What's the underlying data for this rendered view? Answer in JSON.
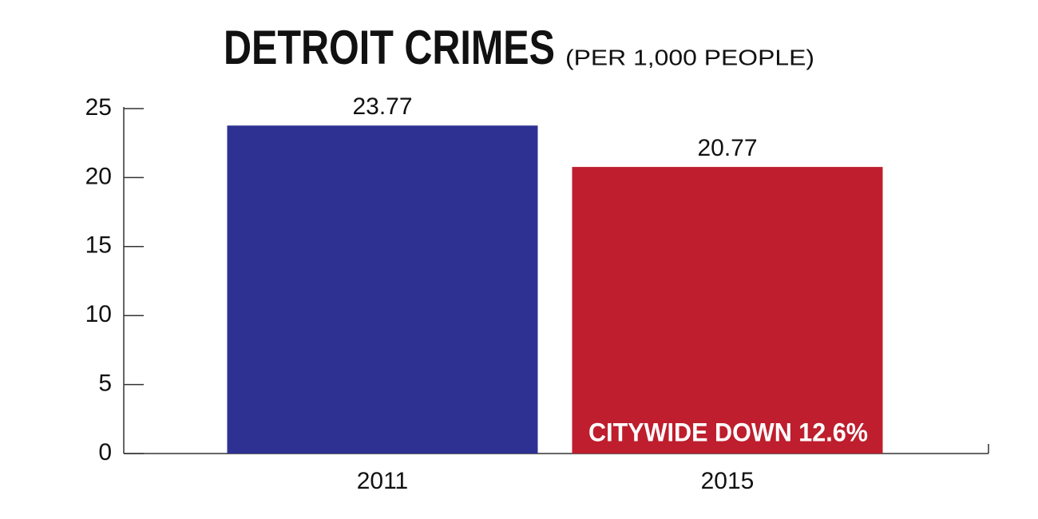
{
  "chart_data": {
    "type": "bar",
    "title": "DETROIT CRIMES",
    "subtitle": "(PER 1,000 PEOPLE)",
    "categories": [
      "2011",
      "2015"
    ],
    "values": [
      23.77,
      20.77
    ],
    "colors": [
      "#2e3192",
      "#be1e2d"
    ],
    "ylim": [
      0,
      25
    ],
    "yticks": [
      0,
      5,
      10,
      15,
      20,
      25
    ],
    "annotation": "CITYWIDE DOWN 12.6%"
  }
}
